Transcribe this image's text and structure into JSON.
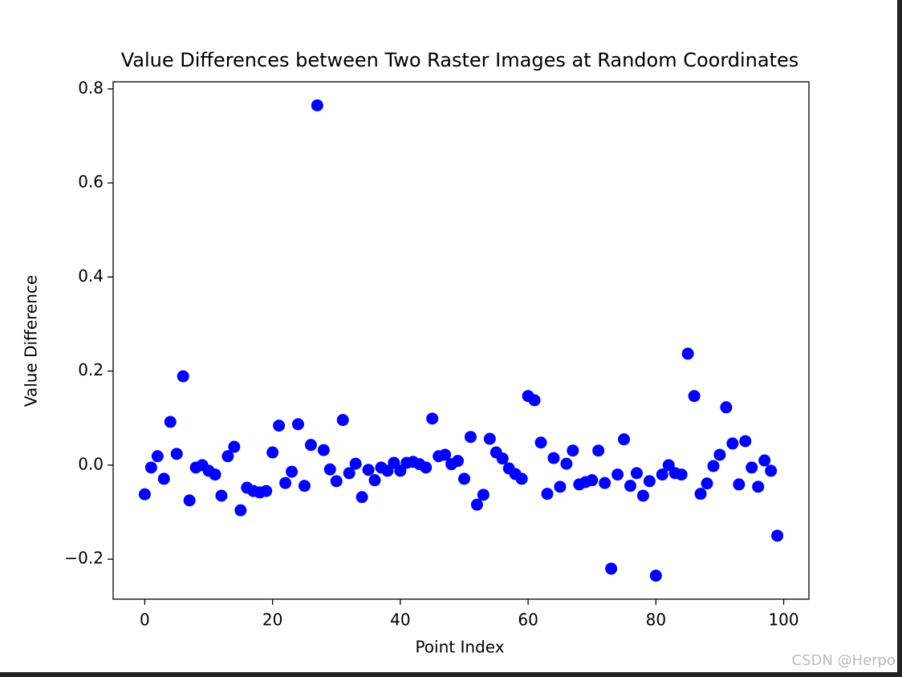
{
  "chart_data": {
    "type": "scatter",
    "title": "Value Differences between Two Raster Images at Random Coordinates",
    "x_label": "Point Index",
    "y_label": "Value Difference",
    "color": "#0000ff",
    "x": [
      0,
      1,
      2,
      3,
      4,
      5,
      6,
      7,
      8,
      9,
      10,
      11,
      12,
      13,
      14,
      15,
      16,
      17,
      18,
      19,
      20,
      21,
      22,
      23,
      24,
      25,
      26,
      27,
      28,
      29,
      30,
      31,
      32,
      33,
      34,
      35,
      36,
      37,
      38,
      39,
      40,
      41,
      42,
      43,
      44,
      45,
      46,
      47,
      48,
      49,
      50,
      51,
      52,
      53,
      54,
      55,
      56,
      57,
      58,
      59,
      60,
      61,
      62,
      63,
      64,
      65,
      66,
      67,
      68,
      69,
      70,
      71,
      72,
      73,
      74,
      75,
      76,
      77,
      78,
      79,
      80,
      81,
      82,
      83,
      84,
      85,
      86,
      87,
      88,
      89,
      90,
      91,
      92,
      93,
      94,
      95,
      96,
      97,
      98,
      99
    ],
    "values": [
      -0.062,
      -0.005,
      0.019,
      -0.029,
      0.092,
      0.024,
      0.189,
      -0.075,
      -0.005,
      0.0,
      -0.012,
      -0.02,
      -0.065,
      0.019,
      0.039,
      -0.096,
      -0.048,
      -0.055,
      -0.058,
      -0.055,
      0.027,
      0.084,
      -0.038,
      -0.014,
      0.087,
      -0.044,
      0.043,
      0.765,
      0.032,
      -0.009,
      -0.034,
      0.096,
      -0.017,
      0.003,
      -0.068,
      -0.01,
      -0.032,
      -0.005,
      -0.012,
      0.005,
      -0.012,
      0.005,
      0.007,
      0.002,
      -0.005,
      0.099,
      0.019,
      0.022,
      0.002,
      0.009,
      -0.029,
      0.06,
      -0.084,
      -0.063,
      0.056,
      0.027,
      0.014,
      -0.007,
      -0.019,
      -0.029,
      0.147,
      0.138,
      0.048,
      -0.061,
      0.015,
      -0.046,
      0.003,
      0.031,
      -0.041,
      -0.036,
      -0.032,
      0.031,
      -0.038,
      -0.22,
      -0.02,
      0.055,
      -0.044,
      -0.017,
      -0.065,
      -0.034,
      -0.235,
      -0.02,
      0.0,
      -0.017,
      -0.02,
      0.237,
      0.147,
      -0.061,
      -0.039,
      -0.002,
      0.022,
      0.123,
      0.046,
      -0.041,
      0.051,
      -0.005,
      -0.046,
      0.01,
      -0.012,
      -0.15
    ],
    "xlim": [
      -4.95,
      103.95
    ],
    "ylim": [
      -0.285,
      0.815
    ],
    "xticks": [
      0,
      20,
      40,
      60,
      80,
      100
    ],
    "yticks": [
      {
        "value": -0.2,
        "label": "−0.2"
      },
      {
        "value": 0,
        "label": "0.0"
      },
      0.2,
      0.4,
      0.6,
      0.8
    ],
    "grid": false
  },
  "watermark": "CSDN @Herpo"
}
